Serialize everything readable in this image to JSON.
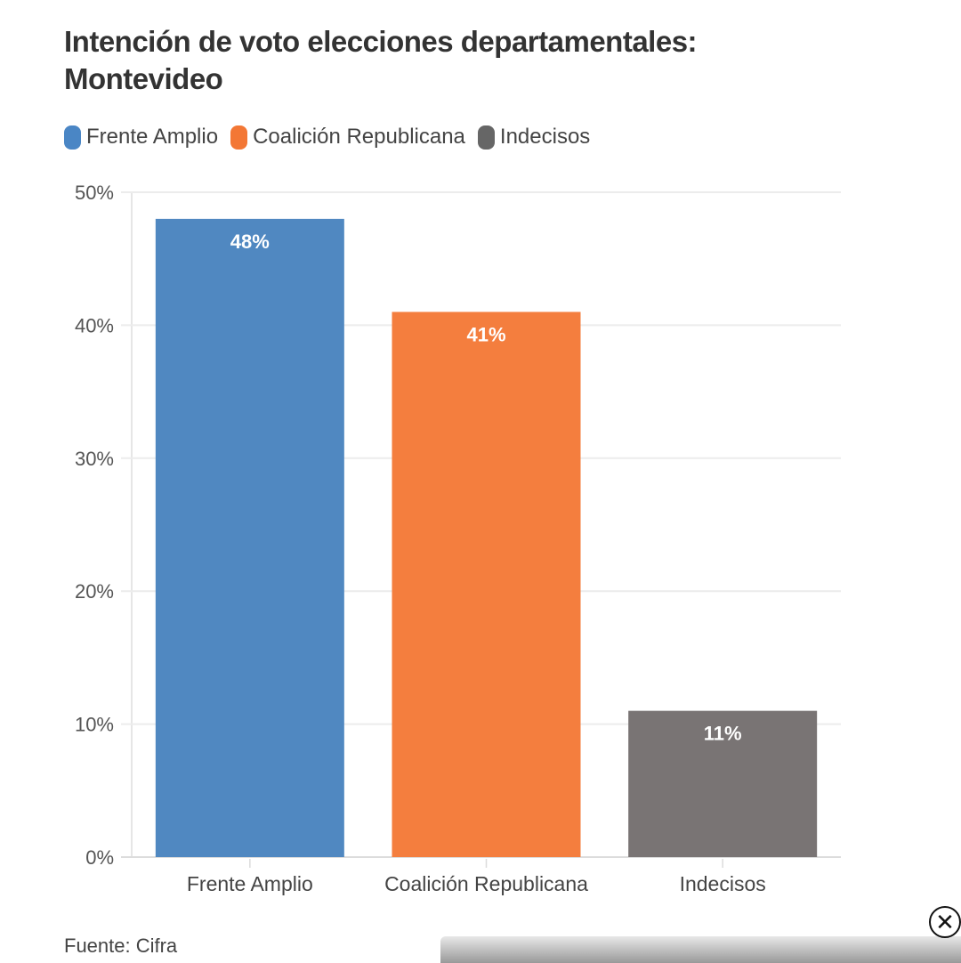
{
  "chart_data": {
    "type": "bar",
    "title": "Intención de voto elecciones departamentales: Montevideo",
    "categories": [
      "Frente Amplio",
      "Coalición Republicana",
      "Indecisos"
    ],
    "values": [
      48,
      41,
      11
    ],
    "data_labels": [
      "48%",
      "41%",
      "11%"
    ],
    "colors": [
      "#5088c1",
      "#f47e3e",
      "#797474"
    ],
    "xlabel": "",
    "ylabel": "",
    "ylim": [
      0,
      50
    ],
    "yticks": [
      0,
      10,
      20,
      30,
      40,
      50
    ],
    "ytick_labels": [
      "0%",
      "10%",
      "20%",
      "30%",
      "40%",
      "50%"
    ],
    "grid": true,
    "legend": {
      "placement": "top-left",
      "entries": [
        {
          "label": "Frente Amplio",
          "color": "#4a86c5"
        },
        {
          "label": "Coalición Republicana",
          "color": "#f37735"
        },
        {
          "label": "Indecisos",
          "color": "#666666"
        }
      ]
    }
  },
  "title_line1": "Intención de voto elecciones departamentales:",
  "title_line2": "Montevideo",
  "source": "Fuente: Cifra",
  "close_icon": "close-circle-icon"
}
